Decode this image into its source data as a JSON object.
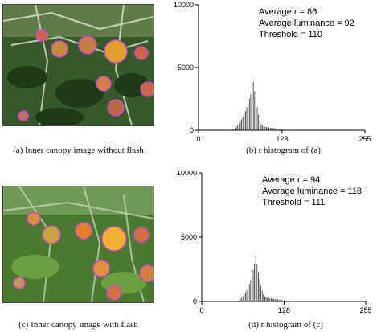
{
  "figures": [
    {
      "caption": "(a) Inner canopy image without flash",
      "flash": false
    },
    {
      "caption": "(c) Inner canopy image with flash",
      "flash": true
    }
  ],
  "chart_data": [
    {
      "type": "bar",
      "title": "",
      "caption": "(b) r histogram of (a)",
      "xlabel": "",
      "ylabel": "",
      "xlim": [
        0,
        255
      ],
      "ylim": [
        0,
        10000
      ],
      "xticks": [
        0,
        128,
        255
      ],
      "yticks": [
        0,
        5000,
        10000
      ],
      "annotations": [
        "Average r = 86",
        "Average luminance = 92",
        "Threshold = 110"
      ],
      "x": [
        50,
        52,
        54,
        56,
        58,
        60,
        62,
        64,
        66,
        68,
        70,
        72,
        74,
        76,
        78,
        80,
        82,
        84,
        86,
        88,
        90,
        92,
        94,
        96,
        98,
        100,
        102,
        104,
        106,
        108,
        110,
        112,
        114,
        116,
        118,
        120,
        122,
        124,
        126,
        128,
        130,
        132,
        134,
        136,
        138
      ],
      "values": [
        20,
        60,
        120,
        200,
        300,
        420,
        550,
        700,
        880,
        1080,
        1300,
        1550,
        1850,
        2150,
        2500,
        2900,
        3350,
        3850,
        3100,
        2450,
        1850,
        1250,
        800,
        500,
        370,
        320,
        290,
        260,
        240,
        220,
        200,
        190,
        180,
        160,
        150,
        130,
        110,
        90,
        70,
        55,
        45,
        35,
        25,
        15,
        10
      ]
    },
    {
      "type": "bar",
      "title": "",
      "caption": "(d) r histogram of (c)",
      "xlabel": "",
      "ylabel": "",
      "xlim": [
        0,
        255
      ],
      "ylim": [
        0,
        10000
      ],
      "xticks": [
        0,
        128,
        255
      ],
      "yticks": [
        0,
        5000,
        10000
      ],
      "annotations": [
        "Average r = 94",
        "Average luminance = 118",
        "Threshold = 111"
      ],
      "x": [
        54,
        56,
        58,
        60,
        62,
        64,
        66,
        68,
        70,
        72,
        74,
        76,
        78,
        80,
        82,
        84,
        86,
        88,
        90,
        92,
        94,
        96,
        98,
        100,
        102,
        104,
        106,
        108,
        110,
        112,
        114,
        116,
        118,
        120,
        122,
        124,
        126,
        128,
        130,
        132,
        134,
        136,
        138,
        140,
        142,
        144,
        146,
        148,
        150
      ],
      "values": [
        20,
        50,
        100,
        180,
        280,
        400,
        540,
        700,
        880,
        1100,
        1350,
        1650,
        2000,
        2450,
        2950,
        3500,
        2900,
        2300,
        1750,
        1250,
        850,
        560,
        400,
        330,
        300,
        270,
        250,
        230,
        210,
        200,
        185,
        170,
        155,
        140,
        125,
        110,
        95,
        80,
        65,
        50,
        40,
        30,
        25,
        20,
        15,
        12,
        10,
        8,
        5
      ]
    }
  ]
}
